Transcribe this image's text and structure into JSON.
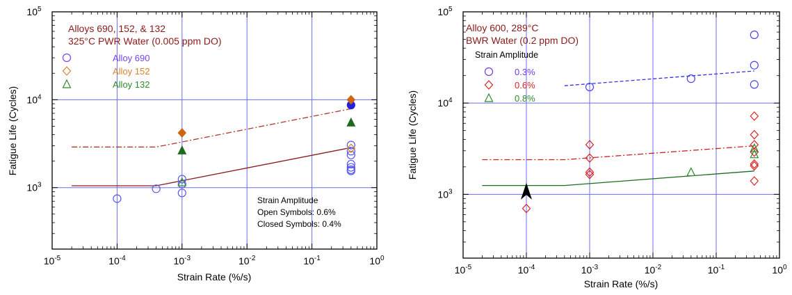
{
  "chart_data": [
    {
      "type": "scatter",
      "xlabel": "Strain Rate (%/s)",
      "ylabel": "Fatigue Life (Cycles)",
      "xscale": "log",
      "yscale": "log",
      "xlim": [
        1e-05,
        1
      ],
      "ylim": [
        200,
        100000
      ],
      "x_ticks": [
        {
          "value": 1e-05,
          "base": "10",
          "exp": "-5"
        },
        {
          "value": 0.0001,
          "base": "10",
          "exp": "-4"
        },
        {
          "value": 0.001,
          "base": "10",
          "exp": "-3"
        },
        {
          "value": 0.01,
          "base": "10",
          "exp": "-2"
        },
        {
          "value": 0.1,
          "base": "10",
          "exp": "-1"
        },
        {
          "value": 1,
          "base": "10",
          "exp": "0"
        }
      ],
      "y_ticks": [
        {
          "value": 1000,
          "base": "10",
          "exp": "3"
        },
        {
          "value": 10000,
          "base": "10",
          "exp": "4"
        },
        {
          "value": 100000,
          "base": "10",
          "exp": "5"
        }
      ],
      "grid": true,
      "title_lines": [
        "Alloys 690, 152, & 132",
        "325°C PWR Water (0.005 ppm DO)"
      ],
      "legend": [
        {
          "name": "Alloy 690",
          "marker": "circle",
          "color": "#7744ee"
        },
        {
          "name": "Alloy 152",
          "marker": "diamond",
          "color": "#d9822b"
        },
        {
          "name": "Alloy 132",
          "marker": "triangle",
          "color": "#2e8b2e"
        }
      ],
      "note": [
        "Strain Amplitude",
        "Open Symbols: 0.6%",
        "Closed Symbols: 0.4%"
      ],
      "series": [
        {
          "name": "Alloy 690",
          "marker": "circle",
          "fill": "open",
          "color": "#5555ee",
          "x": [
            0.0001,
            0.0004,
            0.001,
            0.001,
            0.001,
            0.4,
            0.4,
            0.4,
            0.4,
            0.4,
            0.4,
            0.4
          ],
          "y": [
            750,
            970,
            1250,
            1100,
            870,
            3050,
            2600,
            2350,
            1850,
            1700,
            1600,
            1550
          ]
        },
        {
          "name": "Alloy 690",
          "marker": "circle",
          "fill": "filled",
          "color": "#2222dd",
          "x": [
            0.4
          ],
          "y": [
            8700
          ]
        },
        {
          "name": "Alloy 152",
          "marker": "diamond",
          "fill": "filled",
          "color": "#cc6611",
          "x": [
            0.001,
            0.4
          ],
          "y": [
            4200,
            10000
          ]
        },
        {
          "name": "Alloy 152",
          "marker": "diamond",
          "fill": "open",
          "color": "#d9822b",
          "x": [
            0.4
          ],
          "y": [
            2800
          ]
        },
        {
          "name": "Alloy 132",
          "marker": "triangle",
          "fill": "filled",
          "color": "#1e6b1e",
          "x": [
            0.001,
            0.4
          ],
          "y": [
            2650,
            5500
          ]
        },
        {
          "name": "Alloy 132",
          "marker": "triangle",
          "fill": "open",
          "color": "#2e8b2e",
          "x": [
            0.001
          ],
          "y": [
            1150
          ]
        }
      ],
      "lines": [
        {
          "style": "dashdot",
          "color": "#b03a2e",
          "x": [
            2e-05,
            0.0004,
            0.4
          ],
          "y": [
            2900,
            2900,
            7900
          ]
        },
        {
          "style": "solid",
          "color": "#8b1a1a",
          "x": [
            2e-05,
            0.0004,
            0.4
          ],
          "y": [
            1050,
            1050,
            2850
          ]
        }
      ]
    },
    {
      "type": "scatter",
      "xlabel": "Strain Rate (%/s)",
      "ylabel": "Fatigue Life (Cycles)",
      "xscale": "log",
      "yscale": "log",
      "xlim": [
        1e-05,
        1
      ],
      "ylim": [
        200,
        100000
      ],
      "x_ticks": [
        {
          "value": 1e-05,
          "base": "10",
          "exp": "-5"
        },
        {
          "value": 0.0001,
          "base": "10",
          "exp": "-4"
        },
        {
          "value": 0.001,
          "base": "10",
          "exp": "-3"
        },
        {
          "value": 0.01,
          "base": "10",
          "exp": "-2"
        },
        {
          "value": 0.1,
          "base": "10",
          "exp": "-1"
        },
        {
          "value": 1,
          "base": "10",
          "exp": "0"
        }
      ],
      "y_ticks": [
        {
          "value": 1000,
          "base": "10",
          "exp": "3"
        },
        {
          "value": 10000,
          "base": "10",
          "exp": "4"
        },
        {
          "value": 100000,
          "base": "10",
          "exp": "5"
        }
      ],
      "grid": true,
      "title_lines": [
        "Alloy 600, 289°C",
        "BWR Water (0.2 ppm DO)"
      ],
      "legend_title": "Strain Amplitude",
      "legend": [
        {
          "name": "0.3%",
          "marker": "circle",
          "color": "#6a3de8"
        },
        {
          "name": "0.6%",
          "marker": "diamond",
          "color": "#dd2222"
        },
        {
          "name": "0.8%",
          "marker": "triangle",
          "color": "#2e8b2e"
        }
      ],
      "series": [
        {
          "name": "0.3%",
          "marker": "circle",
          "fill": "open",
          "color": "#4444ee",
          "x": [
            0.001,
            0.04,
            0.4,
            0.4,
            0.4
          ],
          "y": [
            15000,
            18500,
            56000,
            26000,
            16000
          ]
        },
        {
          "name": "0.6%",
          "marker": "diamond",
          "fill": "open",
          "color": "#dd2222",
          "x": [
            0.0001,
            0.001,
            0.001,
            0.001,
            0.001,
            0.4,
            0.4,
            0.4,
            0.4,
            0.4,
            0.4,
            0.4
          ],
          "y": [
            700,
            3500,
            2500,
            1750,
            1650,
            7200,
            4500,
            3500,
            2900,
            2150,
            2050,
            1400
          ]
        },
        {
          "name": "0.8%",
          "marker": "triangle",
          "fill": "open",
          "color": "#2e8b2e",
          "x": [
            0.04,
            0.4,
            0.4
          ],
          "y": [
            1750,
            3200,
            2750
          ]
        }
      ],
      "arrow": {
        "x": 0.0001,
        "y_from": 900,
        "y_to": 1300,
        "color": "#000000"
      },
      "lines": [
        {
          "style": "dashed",
          "color": "#3333dd",
          "x": [
            0.0004,
            0.4
          ],
          "y": [
            15500,
            22500
          ]
        },
        {
          "style": "dashdot",
          "color": "#cc2222",
          "x": [
            2e-05,
            0.0004,
            0.4
          ],
          "y": [
            2400,
            2400,
            3400
          ]
        },
        {
          "style": "solid",
          "color": "#1e6b1e",
          "x": [
            2e-05,
            0.0004,
            0.4
          ],
          "y": [
            1250,
            1250,
            1800
          ]
        }
      ]
    }
  ]
}
